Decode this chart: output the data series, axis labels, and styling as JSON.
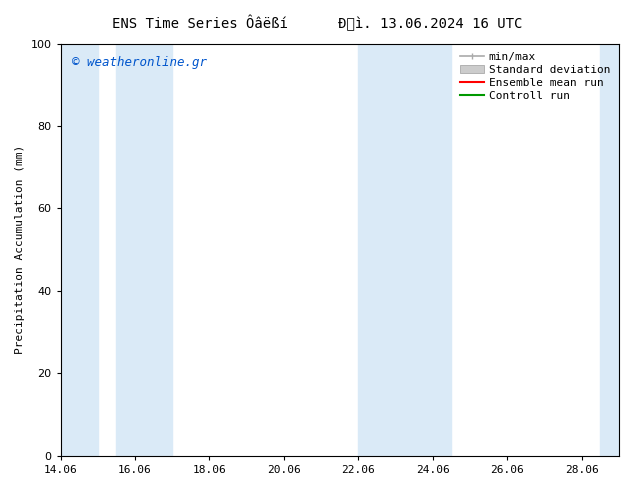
{
  "title_left": "ENS Time Series Ôâëßí",
  "title_right": "Đảì. 13.06.2024 16 UTC",
  "ylabel": "Precipitation Accumulation (mm)",
  "watermark": "© weatheronline.gr",
  "watermark_color": "#0055cc",
  "xlim": [
    14.06,
    29.06
  ],
  "ylim": [
    0,
    100
  ],
  "yticks": [
    0,
    20,
    40,
    60,
    80,
    100
  ],
  "xticks": [
    14.06,
    16.06,
    18.06,
    20.06,
    22.06,
    24.06,
    26.06,
    28.06
  ],
  "xtick_labels": [
    "14.06",
    "16.06",
    "18.06",
    "20.06",
    "22.06",
    "24.06",
    "26.06",
    "28.06"
  ],
  "shaded_bands": [
    [
      14.06,
      15.06
    ],
    [
      15.56,
      17.06
    ],
    [
      22.06,
      23.56
    ],
    [
      23.56,
      24.56
    ],
    [
      28.56,
      29.06
    ]
  ],
  "band_color": "#daeaf7",
  "background_color": "#ffffff",
  "title_fontsize": 10,
  "axis_fontsize": 8,
  "tick_fontsize": 8,
  "watermark_fontsize": 9,
  "legend_minmax_color": "#aaaaaa",
  "legend_stddev_color": "#cccccc",
  "legend_ens_color": "#ff0000",
  "legend_ctrl_color": "#009900"
}
